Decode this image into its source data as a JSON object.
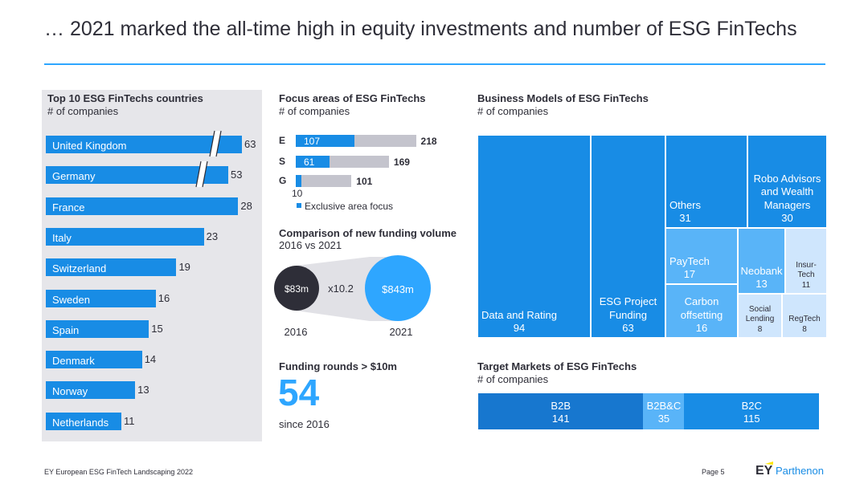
{
  "title": "… 2021 marked the all-time high in equity investments and number of ESG FinTechs",
  "footer": {
    "left": "EY European ESG FinTech Landscaping 2022",
    "page": "Page 5",
    "logo": "EY",
    "brand": "Parthenon"
  },
  "colors": {
    "primary": "#188ce5",
    "light": "#c4c4cd",
    "treemap_dark": "#188ce5",
    "treemap_mid": "#59b4f8",
    "treemap_light": "#cfe6fd",
    "b2b": "#1777cf",
    "b2bc": "#59b4f8",
    "b2c": "#188ce5",
    "accent": "#2ea6ff"
  },
  "chart_data": [
    {
      "type": "bar",
      "title": "Top 10 ESG FinTechs countries",
      "subtitle": "# of companies",
      "categories": [
        "United Kingdom",
        "Germany",
        "France",
        "Italy",
        "Switzerland",
        "Sweden",
        "Spain",
        "Denmark",
        "Norway",
        "Netherlands"
      ],
      "values": [
        63,
        53,
        28,
        23,
        19,
        16,
        15,
        14,
        13,
        11
      ],
      "axis_break": true
    },
    {
      "type": "bar",
      "title": "Focus areas of ESG FinTechs",
      "subtitle": "# of companies",
      "categories": [
        "E",
        "S",
        "G"
      ],
      "series": [
        {
          "name": "Exclusive area focus",
          "values": [
            107,
            61,
            10
          ]
        }
      ],
      "totals": [
        218,
        169,
        101
      ]
    },
    {
      "type": "bubble",
      "title": "Comparison of new funding volume",
      "subtitle": "2016 vs 2021",
      "categories": [
        "2016",
        "2021"
      ],
      "values": [
        83,
        843
      ],
      "value_labels": [
        "$83m",
        "$843m"
      ],
      "multiplier": "x10.2"
    },
    {
      "type": "treemap",
      "title": "Business Models of ESG FinTechs",
      "subtitle": "# of companies",
      "items": [
        {
          "label": "Data and Rating",
          "value": 94
        },
        {
          "label": "ESG Project Funding",
          "value": 63
        },
        {
          "label": "Others",
          "value": 31
        },
        {
          "label": "Robo Advisors and Wealth Managers",
          "value": 30
        },
        {
          "label": "PayTech",
          "value": 17
        },
        {
          "label": "Carbon offsetting",
          "value": 16
        },
        {
          "label": "Neobank",
          "value": 13
        },
        {
          "label": "Insur-Tech",
          "value": 11
        },
        {
          "label": "Social Lending",
          "value": 8
        },
        {
          "label": "RegTech",
          "value": 8
        }
      ]
    },
    {
      "type": "bar",
      "title": "Target Markets of ESG FinTechs",
      "subtitle": "# of companies",
      "categories": [
        "B2B",
        "B2B&C",
        "B2C"
      ],
      "values": [
        141,
        35,
        115
      ],
      "stacked": true
    }
  ],
  "kpi": {
    "title": "Funding rounds > $10m",
    "value": "54",
    "caption": "since 2016"
  }
}
